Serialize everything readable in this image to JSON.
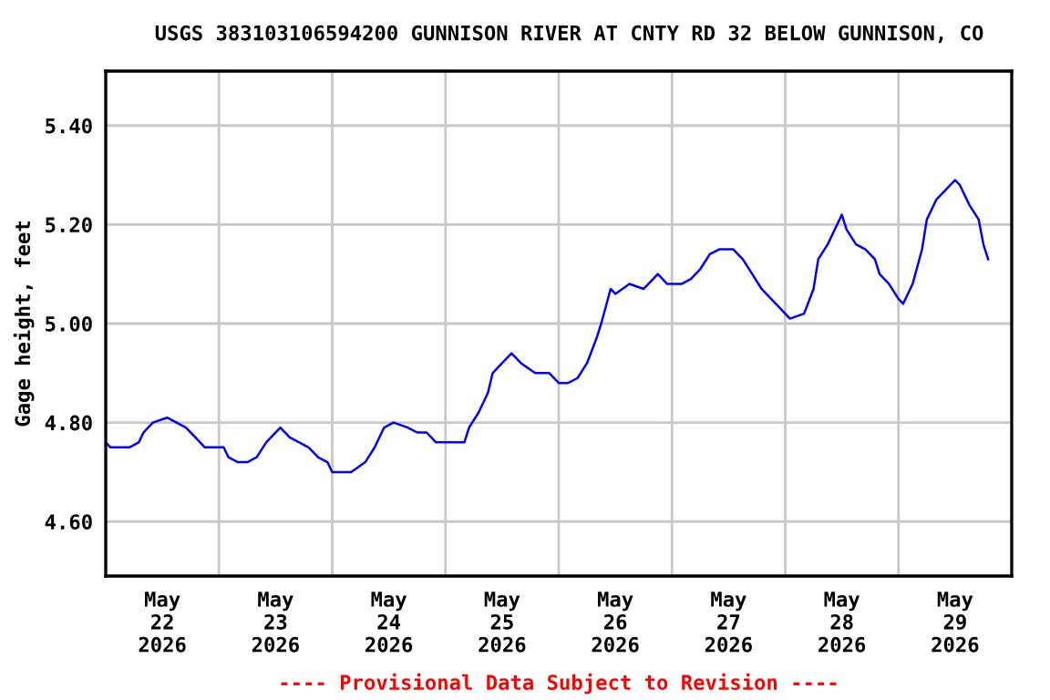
{
  "chart_data": {
    "type": "line",
    "title": "USGS 383103106594200 GUNNISON RIVER AT CNTY RD 32 BELOW GUNNISON, CO",
    "ylabel": "Gage height, feet",
    "annotations": [
      "---- Provisional Data Subject to Revision ----"
    ],
    "x": [
      "2026-05-22T00:00",
      "2026-05-22T01:00",
      "2026-05-22T03:00",
      "2026-05-22T05:00",
      "2026-05-22T07:00",
      "2026-05-22T08:00",
      "2026-05-22T10:00",
      "2026-05-22T13:00",
      "2026-05-22T15:00",
      "2026-05-22T17:00",
      "2026-05-22T19:00",
      "2026-05-22T21:00",
      "2026-05-22T23:00",
      "2026-05-23T01:00",
      "2026-05-23T02:00",
      "2026-05-23T04:00",
      "2026-05-23T06:00",
      "2026-05-23T08:00",
      "2026-05-23T10:00",
      "2026-05-23T13:00",
      "2026-05-23T15:00",
      "2026-05-23T17:00",
      "2026-05-23T19:00",
      "2026-05-23T21:00",
      "2026-05-23T23:00",
      "2026-05-24T00:00",
      "2026-05-24T02:00",
      "2026-05-24T04:00",
      "2026-05-24T07:00",
      "2026-05-24T09:00",
      "2026-05-24T11:00",
      "2026-05-24T13:00",
      "2026-05-24T16:00",
      "2026-05-24T18:00",
      "2026-05-24T20:00",
      "2026-05-24T22:00",
      "2026-05-25T02:00",
      "2026-05-25T04:00",
      "2026-05-25T05:00",
      "2026-05-25T07:00",
      "2026-05-25T09:00",
      "2026-05-25T10:00",
      "2026-05-25T12:00",
      "2026-05-25T14:00",
      "2026-05-25T16:00",
      "2026-05-25T19:00",
      "2026-05-25T22:00",
      "2026-05-26T00:00",
      "2026-05-26T02:00",
      "2026-05-26T04:00",
      "2026-05-26T06:00",
      "2026-05-26T08:00",
      "2026-05-26T09:00",
      "2026-05-26T11:00",
      "2026-05-26T12:00",
      "2026-05-26T15:00",
      "2026-05-26T18:00",
      "2026-05-26T20:00",
      "2026-05-26T21:00",
      "2026-05-26T23:00",
      "2026-05-27T02:00",
      "2026-05-27T04:00",
      "2026-05-27T06:00",
      "2026-05-27T08:00",
      "2026-05-27T10:00",
      "2026-05-27T13:00",
      "2026-05-27T15:00",
      "2026-05-27T17:00",
      "2026-05-27T19:00",
      "2026-05-27T21:00",
      "2026-05-27T23:00",
      "2026-05-28T01:00",
      "2026-05-28T04:00",
      "2026-05-28T06:00",
      "2026-05-28T07:00",
      "2026-05-28T09:00",
      "2026-05-28T11:00",
      "2026-05-28T12:00",
      "2026-05-28T13:00",
      "2026-05-28T15:00",
      "2026-05-28T17:00",
      "2026-05-28T19:00",
      "2026-05-28T20:00",
      "2026-05-28T22:00",
      "2026-05-29T00:00",
      "2026-05-29T01:00",
      "2026-05-29T03:00",
      "2026-05-29T05:00",
      "2026-05-29T06:00",
      "2026-05-29T08:00",
      "2026-05-29T10:00",
      "2026-05-29T12:00",
      "2026-05-29T13:00",
      "2026-05-29T15:00",
      "2026-05-29T17:00",
      "2026-05-29T18:00",
      "2026-05-29T19:00"
    ],
    "series": [
      {
        "color": "#0000ff",
        "values": [
          4.76,
          4.75,
          4.75,
          4.75,
          4.76,
          4.78,
          4.8,
          4.81,
          4.8,
          4.79,
          4.77,
          4.75,
          4.75,
          4.75,
          4.73,
          4.72,
          4.72,
          4.73,
          4.76,
          4.79,
          4.77,
          4.76,
          4.75,
          4.73,
          4.72,
          4.7,
          4.7,
          4.7,
          4.72,
          4.75,
          4.79,
          4.8,
          4.79,
          4.78,
          4.78,
          4.76,
          4.76,
          4.76,
          4.79,
          4.82,
          4.86,
          4.9,
          4.92,
          4.94,
          4.92,
          4.9,
          4.9,
          4.88,
          4.88,
          4.89,
          4.92,
          4.97,
          5.0,
          5.07,
          5.06,
          5.08,
          5.07,
          5.09,
          5.1,
          5.08,
          5.08,
          5.09,
          5.11,
          5.14,
          5.15,
          5.15,
          5.13,
          5.1,
          5.07,
          5.05,
          5.03,
          5.01,
          5.02,
          5.07,
          5.13,
          5.16,
          5.2,
          5.22,
          5.19,
          5.16,
          5.15,
          5.13,
          5.1,
          5.08,
          5.05,
          5.04,
          5.08,
          5.15,
          5.21,
          5.25,
          5.27,
          5.29,
          5.28,
          5.24,
          5.21,
          5.16,
          5.13
        ]
      }
    ],
    "xlim": [
      "2026-05-22T00:00",
      "2026-05-30T00:00"
    ],
    "xticks": [
      {
        "value": "2026-05-22T12:00",
        "label": "May\n22\n2026"
      },
      {
        "value": "2026-05-23T00:00",
        "label": null
      },
      {
        "value": "2026-05-23T12:00",
        "label": "May\n23\n2026"
      },
      {
        "value": "2026-05-24T00:00",
        "label": null
      },
      {
        "value": "2026-05-24T12:00",
        "label": "May\n24\n2026"
      },
      {
        "value": "2026-05-25T00:00",
        "label": null
      },
      {
        "value": "2026-05-25T12:00",
        "label": "May\n25\n2026"
      },
      {
        "value": "2026-05-26T00:00",
        "label": null
      },
      {
        "value": "2026-05-26T12:00",
        "label": "May\n26\n2026"
      },
      {
        "value": "2026-05-27T00:00",
        "label": null
      },
      {
        "value": "2026-05-27T12:00",
        "label": "May\n27\n2026"
      },
      {
        "value": "2026-05-28T00:00",
        "label": null
      },
      {
        "value": "2026-05-28T12:00",
        "label": "May\n28\n2026"
      },
      {
        "value": "2026-05-29T00:00",
        "label": null
      },
      {
        "value": "2026-05-29T12:00",
        "label": "May\n29\n2026"
      }
    ],
    "ylim": [
      4.49,
      5.51
    ],
    "yticks": [
      {
        "value": 4.6,
        "label": "4.60"
      },
      {
        "value": 4.8,
        "label": "4.80"
      },
      {
        "value": 5.0,
        "label": "5.00"
      },
      {
        "value": 5.2,
        "label": "5.20"
      },
      {
        "value": 5.4,
        "label": "5.40"
      }
    ],
    "grid": true
  }
}
